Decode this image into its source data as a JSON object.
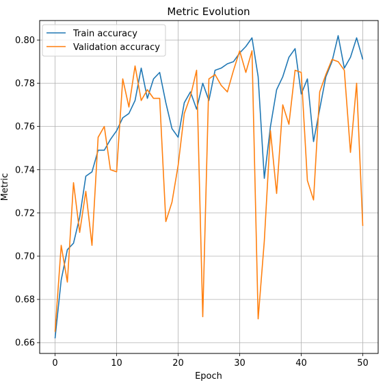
{
  "chart_data": {
    "type": "line",
    "title": "Metric Evolution",
    "xlabel": "Epoch",
    "ylabel": "Metric",
    "xlim": [
      -2.5,
      52.5
    ],
    "ylim": [
      0.655,
      0.809
    ],
    "xticks": [
      0,
      10,
      20,
      30,
      40,
      50
    ],
    "yticks": [
      0.66,
      0.68,
      0.7,
      0.72,
      0.74,
      0.76,
      0.78,
      0.8
    ],
    "grid": true,
    "legend_position": "top-left",
    "x": [
      0,
      1,
      2,
      3,
      4,
      5,
      6,
      7,
      8,
      9,
      10,
      11,
      12,
      13,
      14,
      15,
      16,
      17,
      18,
      19,
      20,
      21,
      22,
      23,
      24,
      25,
      26,
      27,
      28,
      29,
      30,
      31,
      32,
      33,
      34,
      35,
      36,
      37,
      38,
      39,
      40,
      41,
      42,
      43,
      44,
      45,
      46,
      47,
      48,
      49,
      50
    ],
    "series": [
      {
        "name": "Train accuracy",
        "color": "#1f77b4",
        "values": [
          0.662,
          0.689,
          0.703,
          0.706,
          0.718,
          0.737,
          0.739,
          0.749,
          0.749,
          0.754,
          0.758,
          0.764,
          0.766,
          0.772,
          0.787,
          0.773,
          0.782,
          0.785,
          0.771,
          0.759,
          0.755,
          0.771,
          0.776,
          0.768,
          0.78,
          0.772,
          0.786,
          0.787,
          0.789,
          0.79,
          0.794,
          0.797,
          0.801,
          0.783,
          0.736,
          0.76,
          0.777,
          0.783,
          0.792,
          0.796,
          0.775,
          0.782,
          0.753,
          0.768,
          0.783,
          0.79,
          0.802,
          0.787,
          0.792,
          0.801,
          0.791
        ]
      },
      {
        "name": "Validation accuracy",
        "color": "#ff7f0e",
        "values": [
          0.665,
          0.705,
          0.688,
          0.734,
          0.711,
          0.73,
          0.705,
          0.755,
          0.76,
          0.74,
          0.739,
          0.782,
          0.769,
          0.788,
          0.772,
          0.777,
          0.773,
          0.773,
          0.716,
          0.725,
          0.742,
          0.766,
          0.774,
          0.786,
          0.672,
          0.782,
          0.784,
          0.779,
          0.776,
          0.786,
          0.795,
          0.785,
          0.795,
          0.671,
          0.707,
          0.758,
          0.729,
          0.77,
          0.761,
          0.786,
          0.785,
          0.735,
          0.726,
          0.776,
          0.784,
          0.791,
          0.79,
          0.786,
          0.748,
          0.78,
          0.714
        ]
      }
    ]
  }
}
